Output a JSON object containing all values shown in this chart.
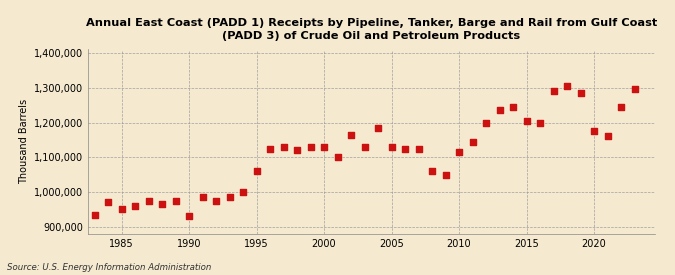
{
  "title": "Annual East Coast (PADD 1) Receipts by Pipeline, Tanker, Barge and Rail from Gulf Coast\n(PADD 3) of Crude Oil and Petroleum Products",
  "ylabel": "Thousand Barrels",
  "source": "Source: U.S. Energy Information Administration",
  "background_color": "#f5e9d0",
  "marker_color": "#cc1111",
  "years": [
    1983,
    1984,
    1985,
    1986,
    1987,
    1988,
    1989,
    1990,
    1991,
    1992,
    1993,
    1994,
    1995,
    1996,
    1997,
    1998,
    1999,
    2000,
    2001,
    2002,
    2003,
    2004,
    2005,
    2006,
    2007,
    2008,
    2009,
    2010,
    2011,
    2012,
    2013,
    2014,
    2015,
    2016,
    2017,
    2018,
    2019,
    2020,
    2021,
    2022,
    2023
  ],
  "values": [
    935000,
    970000,
    950000,
    960000,
    975000,
    965000,
    975000,
    930000,
    985000,
    975000,
    985000,
    1000000,
    1060000,
    1125000,
    1130000,
    1120000,
    1130000,
    1130000,
    1100000,
    1165000,
    1130000,
    1185000,
    1130000,
    1125000,
    1125000,
    1060000,
    1050000,
    1115000,
    1145000,
    1200000,
    1235000,
    1245000,
    1205000,
    1200000,
    1290000,
    1305000,
    1285000,
    1175000,
    1160000,
    1245000,
    1295000
  ],
  "ylim": [
    880000,
    1410000
  ],
  "yticks": [
    900000,
    1000000,
    1100000,
    1200000,
    1300000,
    1400000
  ],
  "xlim": [
    1982.5,
    2024.5
  ],
  "xticks": [
    1985,
    1990,
    1995,
    2000,
    2005,
    2010,
    2015,
    2020
  ]
}
